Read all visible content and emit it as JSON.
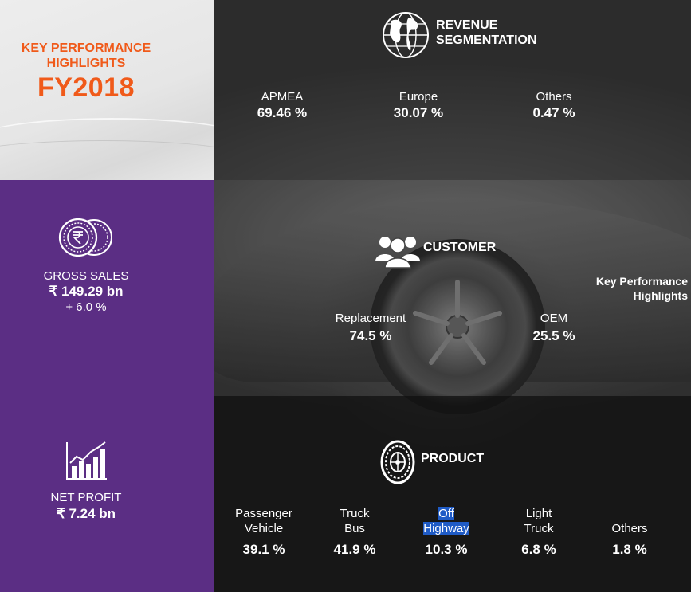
{
  "kpi": {
    "subtitle_line1": "KEY PERFORMANCE",
    "subtitle_line2": "HIGHLIGHTS",
    "year": "FY2018",
    "accent": "#f05a1a"
  },
  "gross_sales": {
    "icon": "rupee-coins-icon",
    "label": "GROSS SALES",
    "value": "₹ 149.29 bn",
    "change": "+ 6.0 %"
  },
  "net_profit": {
    "icon": "growth-chart-icon",
    "label": "NET PROFIT",
    "value": "₹ 7.24 bn"
  },
  "revenue": {
    "icon": "globe-icon",
    "title_line1": "REVENUE",
    "title_line2": "SEGMENTATION",
    "items": [
      {
        "label": "APMEA",
        "value": "69.46 %"
      },
      {
        "label": "Europe",
        "value": "30.07 %"
      },
      {
        "label": "Others",
        "value": "0.47 %"
      }
    ]
  },
  "customer": {
    "icon": "people-icon",
    "title": "CUSTOMER",
    "items": [
      {
        "label": "Replacement",
        "value": "74.5 %"
      },
      {
        "label": "OEM",
        "value": "25.5 %"
      }
    ],
    "side_note_line1": "Key Performance",
    "side_note_line2": "Highlights"
  },
  "product": {
    "icon": "tyre-icon",
    "title": "PRODUCT",
    "items": [
      {
        "label_line1": "Passenger",
        "label_line2": "Vehicle",
        "value": "39.1 %"
      },
      {
        "label_line1": "Truck",
        "label_line2": "Bus",
        "value": "41.9 %"
      },
      {
        "label_line1": "Off",
        "label_line2": "Highway",
        "value": "10.3 %"
      },
      {
        "label_line1": "Light",
        "label_line2": "Truck",
        "value": "6.8 %"
      },
      {
        "label_line1": "",
        "label_line2": "Others",
        "value": "1.8 %"
      }
    ]
  },
  "colors": {
    "purple": "#5b2e84",
    "highlight": "#1f5bc6"
  }
}
